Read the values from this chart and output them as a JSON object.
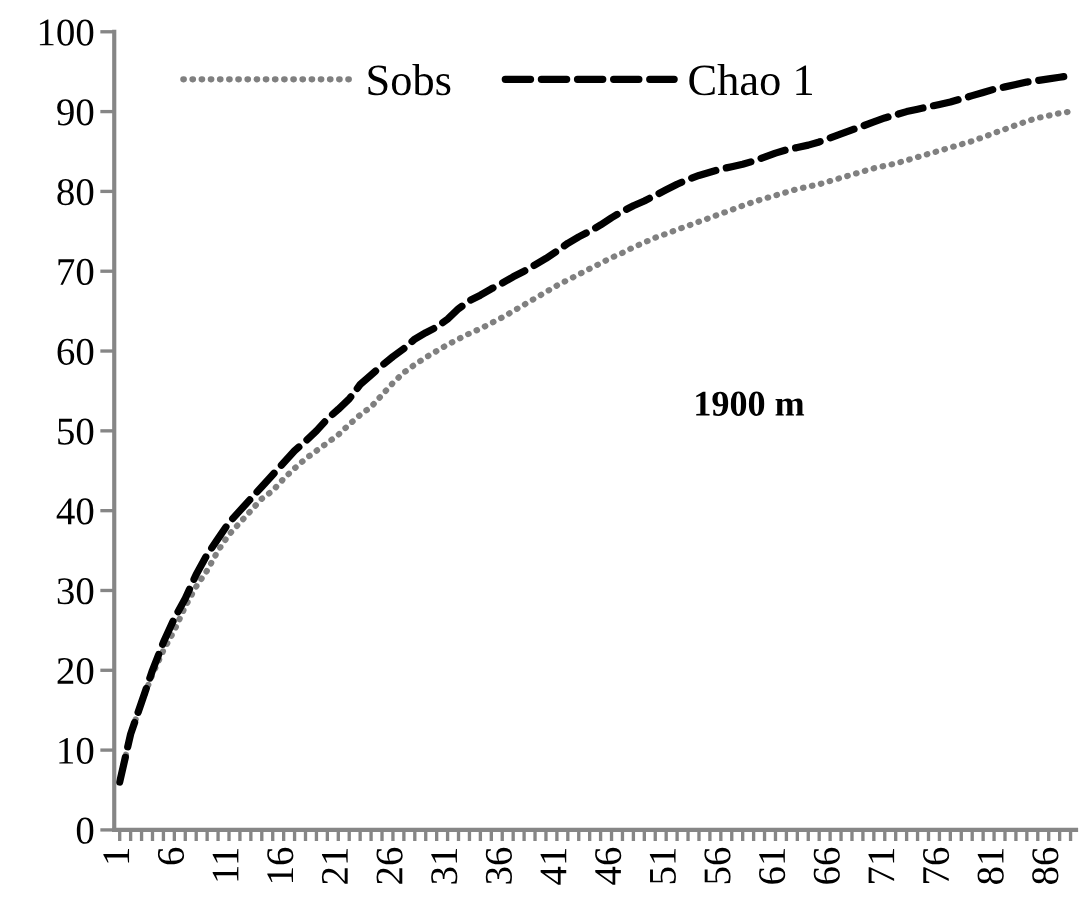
{
  "chart_data": {
    "type": "line",
    "categories": [
      "1",
      null,
      null,
      null,
      null,
      "6",
      null,
      null,
      null,
      null,
      "11",
      null,
      null,
      null,
      null,
      "16",
      null,
      null,
      null,
      null,
      "21",
      null,
      null,
      null,
      null,
      "26",
      null,
      null,
      null,
      null,
      "31",
      null,
      null,
      null,
      null,
      "36",
      null,
      null,
      null,
      null,
      "41",
      null,
      null,
      null,
      null,
      "46",
      null,
      null,
      null,
      null,
      "51",
      null,
      null,
      null,
      null,
      "56",
      null,
      null,
      null,
      null,
      "61",
      null,
      null,
      null,
      null,
      "66",
      null,
      null,
      null,
      null,
      "71",
      null,
      null,
      null,
      null,
      "76",
      null,
      null,
      null,
      null,
      "81",
      null,
      null,
      null,
      null,
      "86",
      null,
      null
    ],
    "series": [
      {
        "name": "Sobs",
        "color": "#808080",
        "line_style": "dotted",
        "values": [
          6,
          12,
          16,
          19.5,
          22.5,
          25,
          28,
          30.5,
          32.5,
          35,
          37,
          38.5,
          40,
          41.5,
          42.5,
          44,
          45.3,
          46.5,
          47.5,
          48.5,
          49.5,
          50.8,
          52,
          53,
          54.5,
          56,
          57.3,
          58.3,
          59.2,
          60,
          60.8,
          61.5,
          62.2,
          62.8,
          63.5,
          64.2,
          65,
          65.8,
          66.6,
          67.4,
          68.2,
          68.9,
          69.6,
          70.3,
          71,
          71.7,
          72.3,
          73,
          73.6,
          74.2,
          74.7,
          75.2,
          75.7,
          76.2,
          76.7,
          77.2,
          77.7,
          78.2,
          78.7,
          79.1,
          79.5,
          79.9,
          80.3,
          80.6,
          80.9,
          81.3,
          81.7,
          82.1,
          82.5,
          82.9,
          83.2,
          83.5,
          83.9,
          84.3,
          84.7,
          85.1,
          85.5,
          85.9,
          86.3,
          86.8,
          87.3,
          87.8,
          88.3,
          88.8,
          89.2,
          89.5,
          89.8,
          90
        ]
      },
      {
        "name": "Chao 1",
        "color": "#000000",
        "line_style": "dashed",
        "values": [
          6,
          12,
          16,
          20,
          23.5,
          26.5,
          29,
          32,
          34.5,
          36.5,
          38.5,
          40,
          41.5,
          43,
          44.5,
          46,
          47.5,
          48.7,
          50,
          51.5,
          52.7,
          54,
          55.8,
          57,
          58.2,
          59.3,
          60.3,
          61.5,
          62.3,
          63,
          64,
          65.3,
          66.3,
          67,
          67.8,
          68.5,
          69.3,
          70,
          70.8,
          71.6,
          72.5,
          73.5,
          74.3,
          75,
          75.8,
          76.7,
          77.5,
          78.2,
          78.8,
          79.5,
          80.2,
          80.9,
          81.5,
          82,
          82.4,
          82.8,
          83.1,
          83.4,
          83.8,
          84.3,
          84.8,
          85.2,
          85.5,
          85.8,
          86.2,
          86.7,
          87.2,
          87.7,
          88.2,
          88.7,
          89.2,
          89.6,
          90,
          90.3,
          90.6,
          90.9,
          91.2,
          91.6,
          92,
          92.4,
          92.8,
          93.1,
          93.4,
          93.7,
          93.9,
          94.1,
          94.3,
          94.5
        ]
      }
    ],
    "ylim": [
      0,
      100
    ],
    "yticks": [
      0,
      10,
      20,
      30,
      40,
      50,
      60,
      70,
      80,
      90,
      100
    ],
    "annotations": [
      "1900 m"
    ],
    "legend": "top",
    "grid": false,
    "marker": "none"
  }
}
